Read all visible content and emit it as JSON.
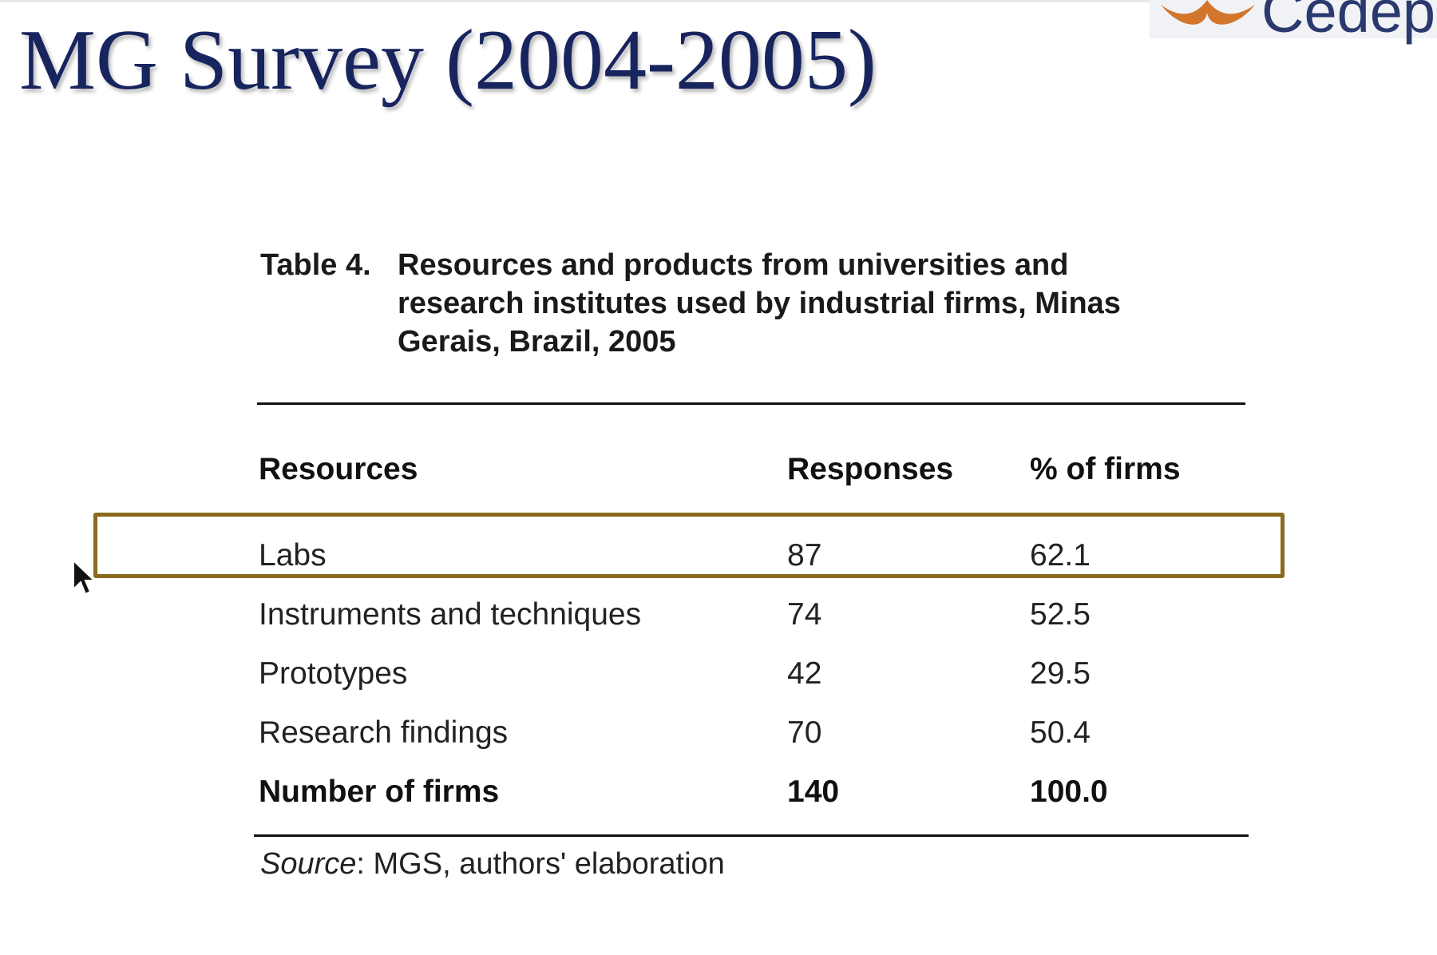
{
  "slide": {
    "title": "MG Survey (2004-2005)",
    "logo_text": "Cedepl"
  },
  "table": {
    "caption_number": "Table 4.",
    "caption_text": "Resources and products from universities and research institutes used by industrial firms, Minas Gerais, Brazil, 2005",
    "headers": {
      "resources": "Resources",
      "responses": "Responses",
      "percent": "% of firms"
    },
    "rows": [
      {
        "resource": "Labs",
        "responses": "87",
        "percent": "62.1"
      },
      {
        "resource": "Instruments and techniques",
        "responses": "74",
        "percent": "52.5"
      },
      {
        "resource": "Prototypes",
        "responses": "42",
        "percent": "29.5"
      },
      {
        "resource": "Research findings",
        "responses": "70",
        "percent": "50.4"
      }
    ],
    "total": {
      "resource": "Number of firms",
      "responses": "140",
      "percent": "100.0"
    },
    "source_label": "Source",
    "source_text": ": MGS, authors' elaboration"
  },
  "colors": {
    "title": "#17245e",
    "highlight_border": "#8a6a1c",
    "logo_accent": "#d2762e"
  },
  "icons": [
    "logo-mark-icon",
    "mouse-cursor-icon"
  ]
}
